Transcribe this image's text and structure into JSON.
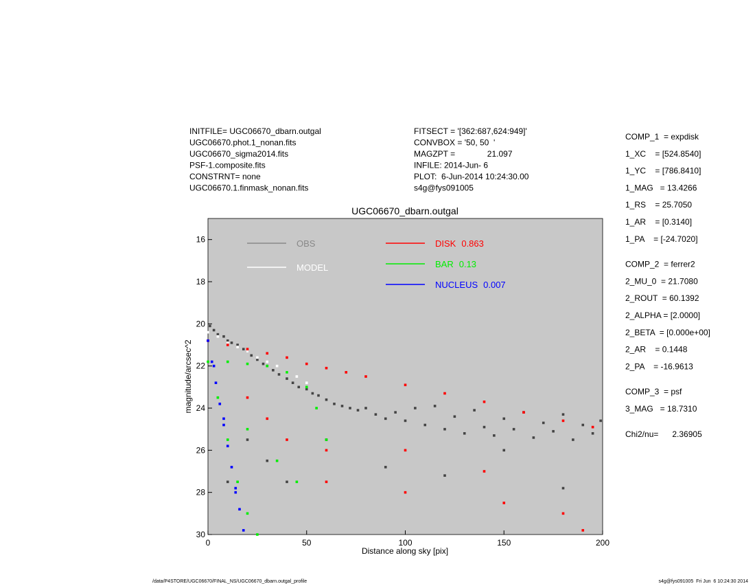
{
  "header": {
    "left": [
      "INITFILE= UGC06670_dbarn.outgal",
      "UGC06670.phot.1_nonan.fits",
      "UGC06670_sigma2014.fits",
      "PSF-1.composite.fits",
      "CONSTRNT= none",
      "UGC06670.1.finmask_nonan.fits"
    ],
    "middle": [
      "FITSECT = '[362:687,624:949]'",
      "CONVBOX = '50, 50  '",
      "MAGZPT =              21.097",
      "INFILE: 2014-Jun- 6",
      "PLOT:  6-Jun-2014 10:24:30.00",
      "s4g@fys091005"
    ]
  },
  "parameters": [
    [
      "COMP_1  = expdisk",
      "1_XC    = [524.8540]",
      "1_YC    = [786.8410]",
      "1_MAG   = 13.4266",
      "1_RS    = 25.7050",
      "1_AR    = [0.3140]",
      "1_PA    = [-24.7020]"
    ],
    [
      "COMP_2  = ferrer2",
      "2_MU_0  = 21.7080",
      "2_ROUT  = 60.1392",
      "2_ALPHA = [2.0000]",
      "2_BETA  = [0.000e+00]",
      "2_AR    = 0.1448",
      "2_PA    = -16.9613"
    ],
    [
      "COMP_3  = psf",
      "3_MAG   = 18.7310"
    ],
    [
      "Chi2/nu=      2.36905"
    ]
  ],
  "footer": {
    "left": "/data/P4STORE/UGC06670/FINAL_NS/UGC06670_dbarn.outgal_profile",
    "right": "s4g@fys091005  Fri Jun  6 10:24:30 2014"
  },
  "chart_data": {
    "type": "scatter",
    "title": "UGC06670_dbarn.outgal",
    "x_label": "Distance along sky [pix]",
    "y_label": "magnitude/arcsec^2",
    "xlim": [
      0,
      200
    ],
    "xticks": [
      0,
      50,
      100,
      150,
      200
    ],
    "ylim": [
      30,
      15
    ],
    "yticks": [
      16,
      18,
      20,
      22,
      24,
      26,
      28,
      30
    ],
    "series": [
      {
        "name": "OBS",
        "color": "#444444",
        "legend_color": "#888888",
        "x": [
          1,
          3,
          5,
          8,
          10,
          12,
          15,
          18,
          20,
          22,
          25,
          28,
          30,
          33,
          36,
          40,
          43,
          46,
          50,
          53,
          56,
          60,
          64,
          68,
          72,
          76,
          80,
          85,
          90,
          95,
          100,
          105,
          110,
          115,
          120,
          125,
          130,
          135,
          140,
          145,
          150,
          155,
          160,
          165,
          170,
          175,
          180,
          185,
          190,
          195,
          199,
          30,
          40,
          60,
          90,
          120,
          150,
          180,
          10,
          20
        ],
        "values": [
          20.1,
          20.3,
          20.5,
          20.6,
          20.8,
          20.9,
          21.0,
          21.2,
          21.3,
          21.5,
          21.7,
          21.9,
          22.0,
          22.2,
          22.4,
          22.6,
          22.8,
          23.0,
          23.1,
          23.3,
          23.4,
          23.6,
          23.8,
          23.9,
          24.0,
          24.1,
          24.0,
          24.3,
          24.5,
          24.2,
          24.6,
          24.0,
          24.8,
          23.9,
          25.0,
          24.4,
          25.2,
          24.1,
          24.9,
          25.3,
          24.5,
          25.0,
          24.2,
          25.4,
          24.7,
          25.1,
          24.3,
          25.5,
          24.8,
          25.2,
          24.6,
          26.5,
          27.5,
          25.5,
          26.8,
          27.2,
          26.0,
          27.8,
          27.5,
          25.5
        ]
      },
      {
        "name": "MODEL",
        "color": "#ffffff",
        "legend_color": "#ffffff",
        "x": [
          0,
          5,
          10,
          15,
          20,
          25,
          30,
          35,
          40,
          45,
          50
        ],
        "values": [
          20.4,
          20.6,
          20.9,
          21.1,
          21.3,
          21.6,
          21.8,
          22.0,
          22.3,
          22.5,
          22.8
        ]
      },
      {
        "name": "DISK",
        "fraction": 0.863,
        "color": "#ff0000",
        "legend_color": "#ff0000",
        "x": [
          0,
          10,
          20,
          30,
          40,
          50,
          60,
          70,
          80,
          100,
          120,
          140,
          160,
          180,
          195,
          20,
          40,
          60,
          100,
          140,
          180,
          30,
          60,
          100,
          150,
          190
        ],
        "values": [
          20.8,
          21.0,
          21.2,
          21.4,
          21.6,
          21.9,
          22.1,
          22.3,
          22.5,
          22.9,
          23.3,
          23.7,
          24.2,
          24.6,
          24.9,
          23.5,
          25.5,
          27.5,
          26.0,
          27.0,
          29.0,
          24.5,
          26.0,
          28.0,
          28.5,
          29.8
        ]
      },
      {
        "name": "BAR",
        "fraction": 0.13,
        "color": "#00ee00",
        "legend_color": "#00ee00",
        "x": [
          0,
          10,
          20,
          30,
          40,
          50,
          55,
          60,
          5,
          10,
          15,
          20,
          25,
          20,
          35,
          45
        ],
        "values": [
          21.8,
          21.8,
          21.9,
          22.0,
          22.3,
          23.0,
          24.0,
          25.5,
          23.5,
          25.5,
          27.5,
          29.0,
          30.0,
          25.0,
          26.5,
          27.5
        ]
      },
      {
        "name": "NUCLEUS",
        "fraction": 0.007,
        "color": "#0000ff",
        "legend_color": "#0000ff",
        "x": [
          0,
          2,
          4,
          6,
          8,
          10,
          12,
          14,
          16,
          18,
          3,
          8,
          14
        ],
        "values": [
          20.8,
          21.8,
          22.8,
          23.8,
          24.8,
          25.8,
          26.8,
          27.8,
          28.8,
          29.8,
          22.0,
          24.5,
          28.0
        ]
      }
    ]
  }
}
